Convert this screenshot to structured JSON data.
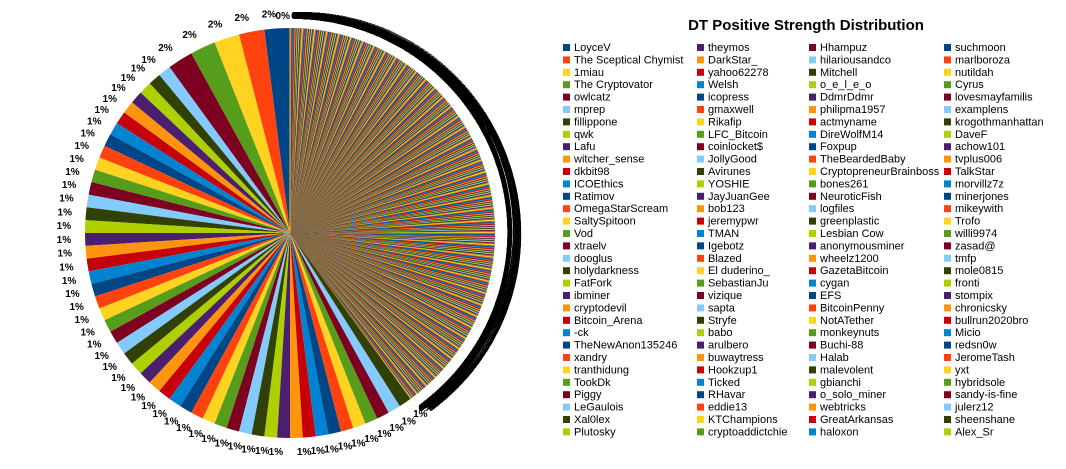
{
  "chart_data": {
    "type": "pie",
    "title": "DT Positive Strength Distribution",
    "palette": [
      "#004586",
      "#ff420e",
      "#ffd320",
      "#579d1c",
      "#7e0021",
      "#83caff",
      "#314004",
      "#aecf00",
      "#4b1f6f",
      "#ff950e",
      "#c5000b",
      "#0084d1"
    ],
    "legend_columns": [
      [
        "LoyceV",
        "The Sceptical Chymist",
        "1miau",
        "The Cryptovator",
        "owlcatz",
        "mprep",
        "fillippone",
        "qwk",
        "Lafu",
        "witcher_sense",
        "dkbit98",
        "ICOEthics",
        "Ratimov",
        "OmegaStarScream",
        "SaltySpitoon",
        "Vod",
        "xtraelv",
        "dooglus",
        "holydarkness",
        "FatFork",
        "ibminer",
        "cryptodevil",
        "Bitcoin_Arena",
        "-ck",
        "TheNewAnon135246",
        "xandry",
        "tranthidung",
        "TookDk",
        "Piggy",
        "LeGaulois",
        "Xal0lex",
        "Plutosky"
      ],
      [
        "theymos",
        "DarkStar_",
        "yahoo62278",
        "Welsh",
        "icopress",
        "gmaxwell",
        "Rikafip",
        "LFC_Bitcoin",
        "coinlocket$",
        "JollyGood",
        "Avirunes",
        "YOSHIE",
        "JayJuanGee",
        "bob123",
        "jeremypwr",
        "TMAN",
        "Igebotz",
        "Blazed",
        "El duderino_",
        "SebastianJu",
        "vizique",
        "sapta",
        "Stryfe",
        "babo",
        "arulbero",
        "buwaytress",
        "Hookzup1",
        "Ticked",
        "RHavar",
        "eddie13",
        "KTChampions",
        "cryptoaddictchie"
      ],
      [
        "Hhampuz",
        "hilariousandco",
        "Mitchell",
        "o_e_l_e_o",
        "DdmrDdmr",
        "philipma1957",
        "actmyname",
        "DireWolfM14",
        "Foxpup",
        "TheBeardedBaby",
        "CryptopreneurBrainboss",
        "bones261",
        "NeuroticFish",
        "logfiles",
        "greenplastic",
        "Lesbian Cow",
        "anonymousminer",
        "wheelz1200",
        "GazetaBitcoin",
        "cygan",
        "EFS",
        "BitcoinPenny",
        "NotATether",
        "monkeynuts",
        "Buchi-88",
        "Halab",
        "malevolent",
        "gbianchi",
        "o_solo_miner",
        "webtricks",
        "GreatArkansas",
        "haloxon"
      ],
      [
        "suchmoon",
        "marlboroza",
        "nutildah",
        "Cyrus",
        "lovesmayfamilis",
        "examplens",
        "krogothmanhattan",
        "DaveF",
        "achow101",
        "tvplus006",
        "TalkStar",
        "morvillz7z",
        "minerjones",
        "mikeywith",
        "Trofo",
        "willi9974",
        "zasad@",
        "tmfp",
        "mole0815",
        "fronti",
        "stompix",
        "chronicsky",
        "bullrun2020bro",
        "Micio",
        "redsn0w",
        "JeromeTash",
        "yxt",
        "hybridsole",
        "sandy-is-fine",
        "julerz12",
        "sheenshane",
        "Alex_Sr"
      ]
    ],
    "major_slice_percents": [
      2,
      2,
      2,
      2,
      2,
      1,
      1,
      1,
      1,
      1,
      1,
      1,
      1,
      1,
      1,
      1,
      1,
      1,
      1,
      1,
      1,
      1,
      1,
      1,
      1,
      1,
      1,
      1,
      1,
      1,
      1,
      1,
      1,
      1,
      1,
      1,
      1,
      1,
      1,
      1,
      1,
      1,
      1,
      1,
      1,
      1,
      1,
      1,
      1,
      1,
      1,
      1,
      1,
      1,
      1
    ],
    "small_slice_count": 500,
    "remainder_color": "#b3a898",
    "label_format": "{p}%",
    "legend_placement": "right"
  }
}
